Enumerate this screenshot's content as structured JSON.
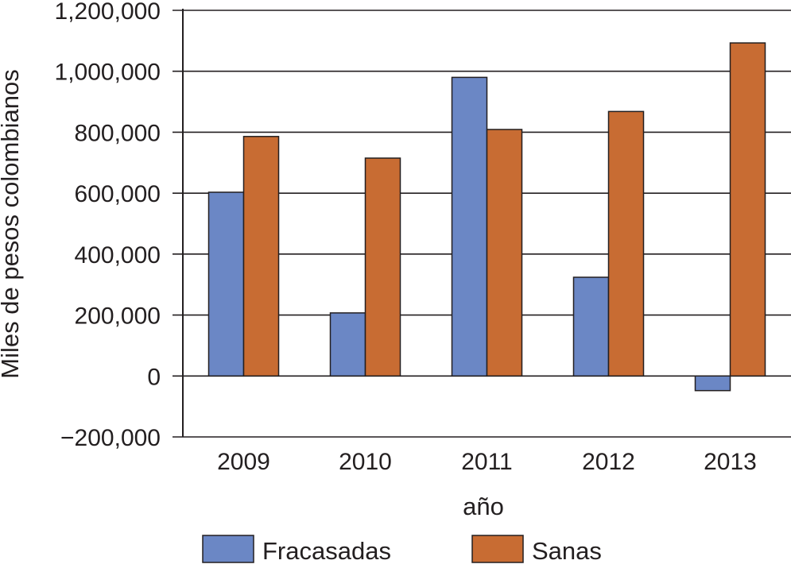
{
  "chart_data": {
    "type": "bar",
    "title": "",
    "xlabel": "año",
    "ylabel": "Miles  de  pesos  colombianos",
    "categories": [
      "2009",
      "2010",
      "2011",
      "2012",
      "2013"
    ],
    "series": [
      {
        "name": "Fracasadas",
        "color": "#6b87c5",
        "values": [
          603000,
          207000,
          980000,
          324000,
          -48000
        ]
      },
      {
        "name": "Sanas",
        "color": "#c86c33",
        "values": [
          786000,
          715000,
          809000,
          868000,
          1093000
        ]
      }
    ],
    "ylim": [
      -200000,
      1200000
    ],
    "yticks": [
      -200000,
      0,
      200000,
      400000,
      600000,
      800000,
      1000000,
      1200000
    ],
    "ytick_labels": [
      "−200,000",
      "0",
      "200,000",
      "400,000",
      "600,000",
      "800,000",
      "1,000,000",
      "1,200,000"
    ],
    "grid": true,
    "legend_position": "bottom"
  }
}
